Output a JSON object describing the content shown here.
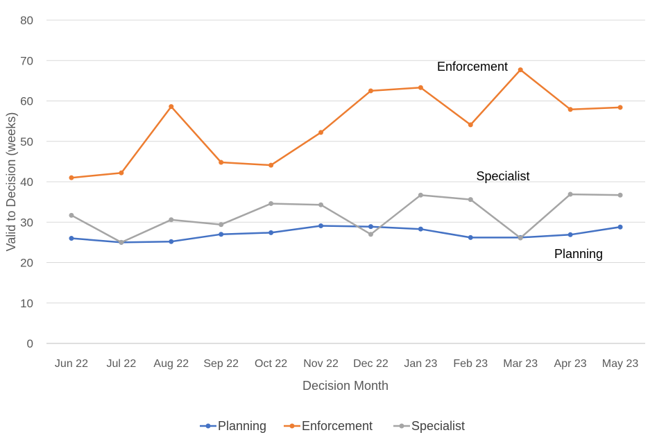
{
  "chart_data": {
    "type": "line",
    "title": "",
    "xlabel": "Decision Month",
    "ylabel": "Valid to Decision (weeks)",
    "ylim": [
      0,
      80
    ],
    "yticks": [
      0,
      10,
      20,
      30,
      40,
      50,
      60,
      70,
      80
    ],
    "grid": true,
    "legend_position": "bottom",
    "categories": [
      "Jun 22",
      "Jul 22",
      "Aug 22",
      "Sep 22",
      "Oct 22",
      "Nov 22",
      "Dec 22",
      "Jan 23",
      "Feb 23",
      "Mar 23",
      "Apr 23",
      "May 23"
    ],
    "series": [
      {
        "name": "Planning",
        "color": "#4472c4",
        "values": [
          26.0,
          25.0,
          25.2,
          27.0,
          27.4,
          29.1,
          28.9,
          28.3,
          26.2,
          26.2,
          26.9,
          28.8
        ]
      },
      {
        "name": "Enforcement",
        "color": "#ed7d31",
        "values": [
          41.0,
          42.2,
          58.6,
          44.8,
          44.1,
          52.2,
          62.5,
          63.3,
          54.1,
          67.7,
          57.9,
          58.4
        ]
      },
      {
        "name": "Specialist",
        "color": "#a5a5a5",
        "values": [
          31.7,
          25.0,
          30.6,
          29.4,
          34.6,
          34.3,
          27.0,
          36.7,
          35.6,
          26.1,
          36.9,
          36.7
        ]
      }
    ],
    "annotations": [
      {
        "text": "Enforcement",
        "series": "Enforcement"
      },
      {
        "text": "Specialist",
        "series": "Specialist"
      },
      {
        "text": "Planning",
        "series": "Planning"
      }
    ]
  }
}
